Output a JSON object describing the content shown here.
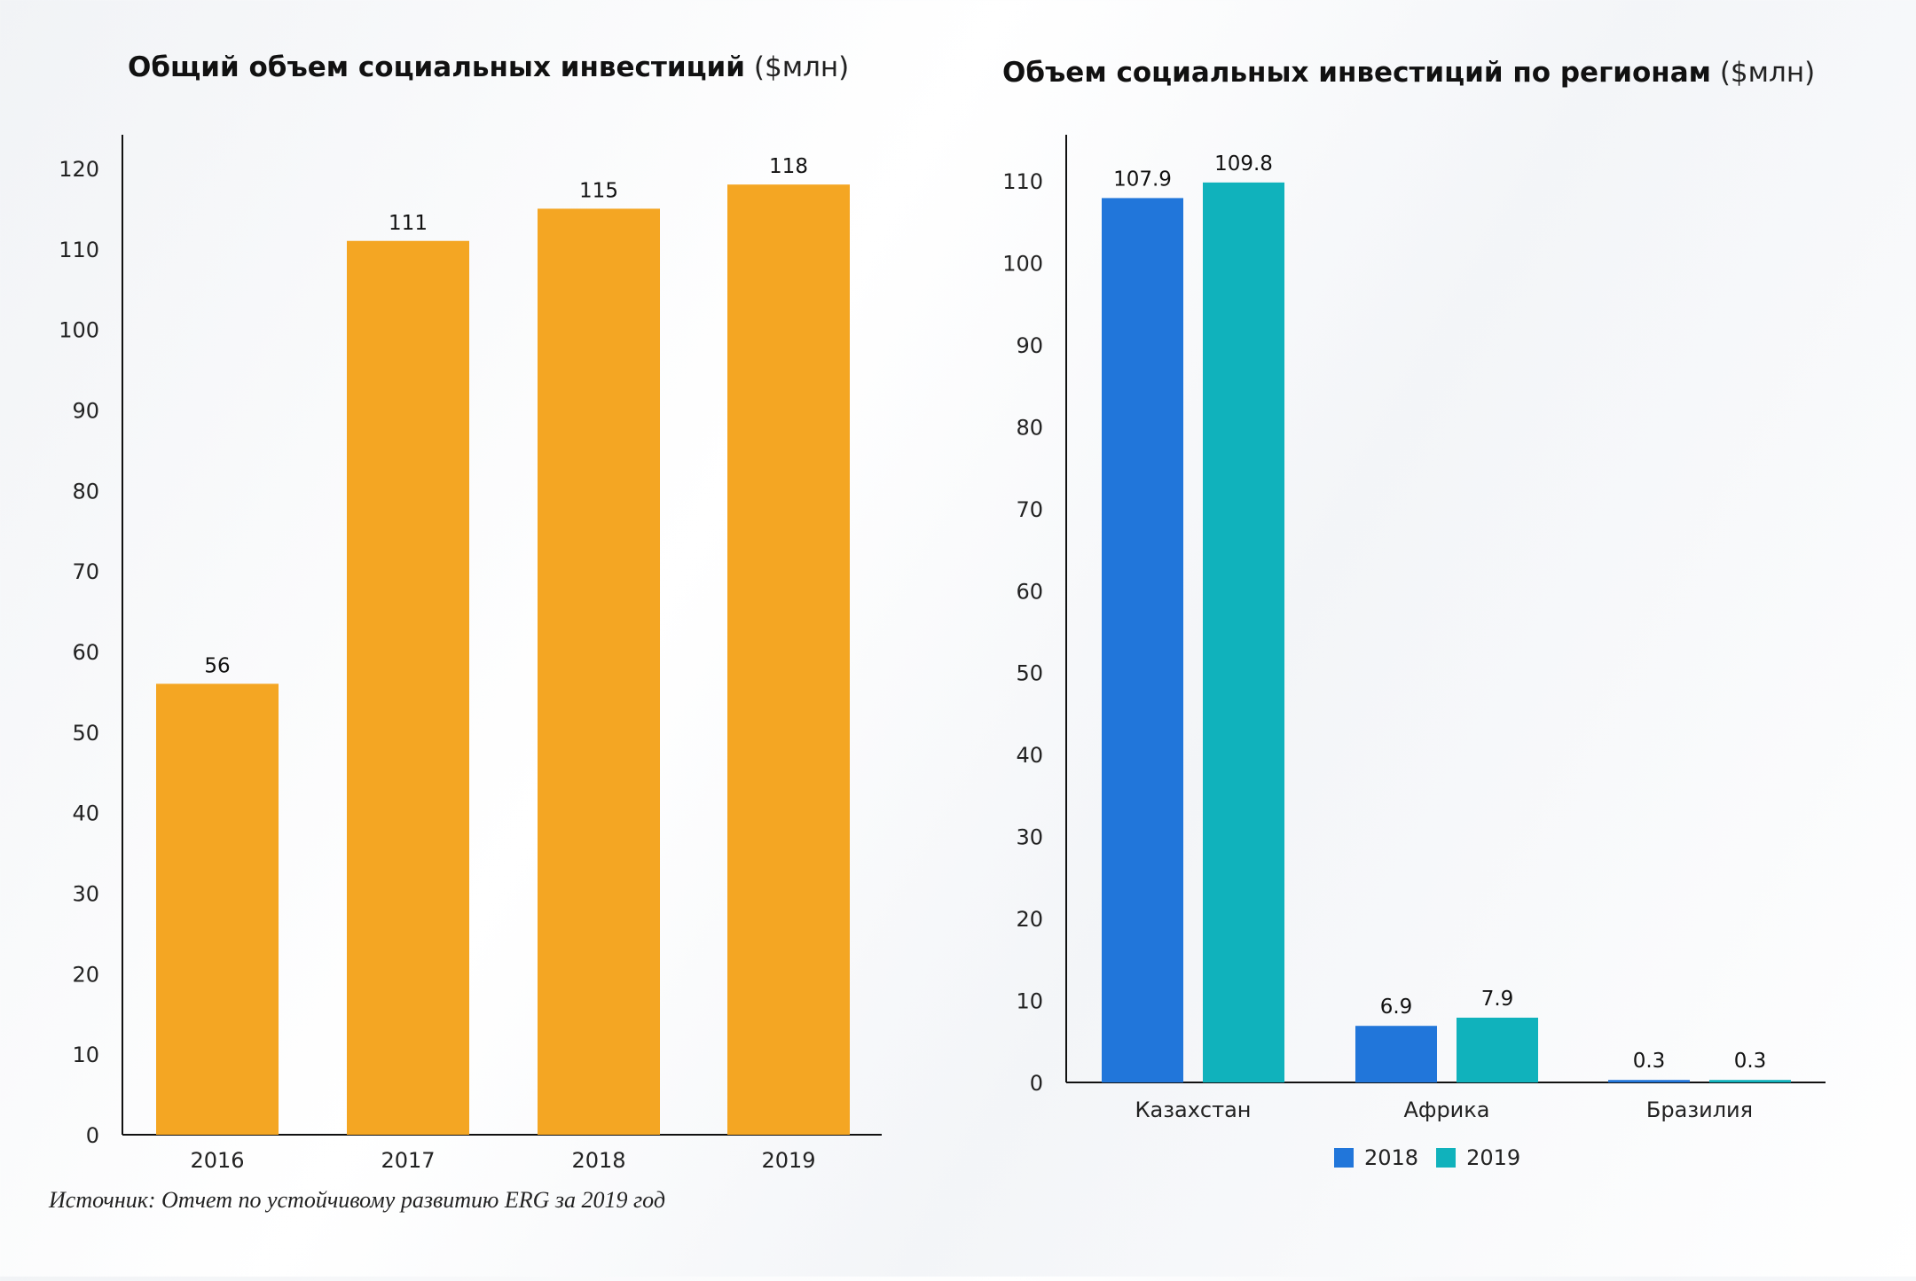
{
  "chart_data": [
    {
      "type": "bar",
      "title": "Общий объем социальных инвестиций",
      "unit": "($млн)",
      "categories": [
        "2016",
        "2017",
        "2018",
        "2019"
      ],
      "values": [
        56,
        111,
        115,
        118
      ],
      "data_labels": [
        "56",
        "111",
        "115",
        "118"
      ],
      "yticks": [
        "0",
        "10",
        "20",
        "30",
        "40",
        "50",
        "60",
        "70",
        "80",
        "90",
        "100",
        "110",
        "120"
      ],
      "ylim": [
        0,
        120
      ],
      "grid": false,
      "color": "#F4A623"
    },
    {
      "type": "bar",
      "title": "Объем социальных инвестиций по регионам",
      "unit": "($млн)",
      "categories": [
        "Казахстан",
        "Африка",
        "Бразилия"
      ],
      "series": [
        {
          "name": "2018",
          "values": [
            107.9,
            6.9,
            0.3
          ],
          "labels": [
            "107.9",
            "6.9",
            "0.3"
          ],
          "color": "#2176DA"
        },
        {
          "name": "2019",
          "values": [
            109.8,
            7.9,
            0.3
          ],
          "labels": [
            "109.8",
            "7.9",
            "0.3"
          ],
          "color": "#10B2BC"
        }
      ],
      "yticks": [
        "0",
        "10",
        "20",
        "30",
        "40",
        "50",
        "60",
        "70",
        "80",
        "90",
        "100",
        "110"
      ],
      "ylim": [
        0,
        110
      ],
      "grid": false,
      "legend": "bottom-center"
    }
  ],
  "source_note": "Источник: Отчет по устойчивому развитию ERG за 2019 год"
}
